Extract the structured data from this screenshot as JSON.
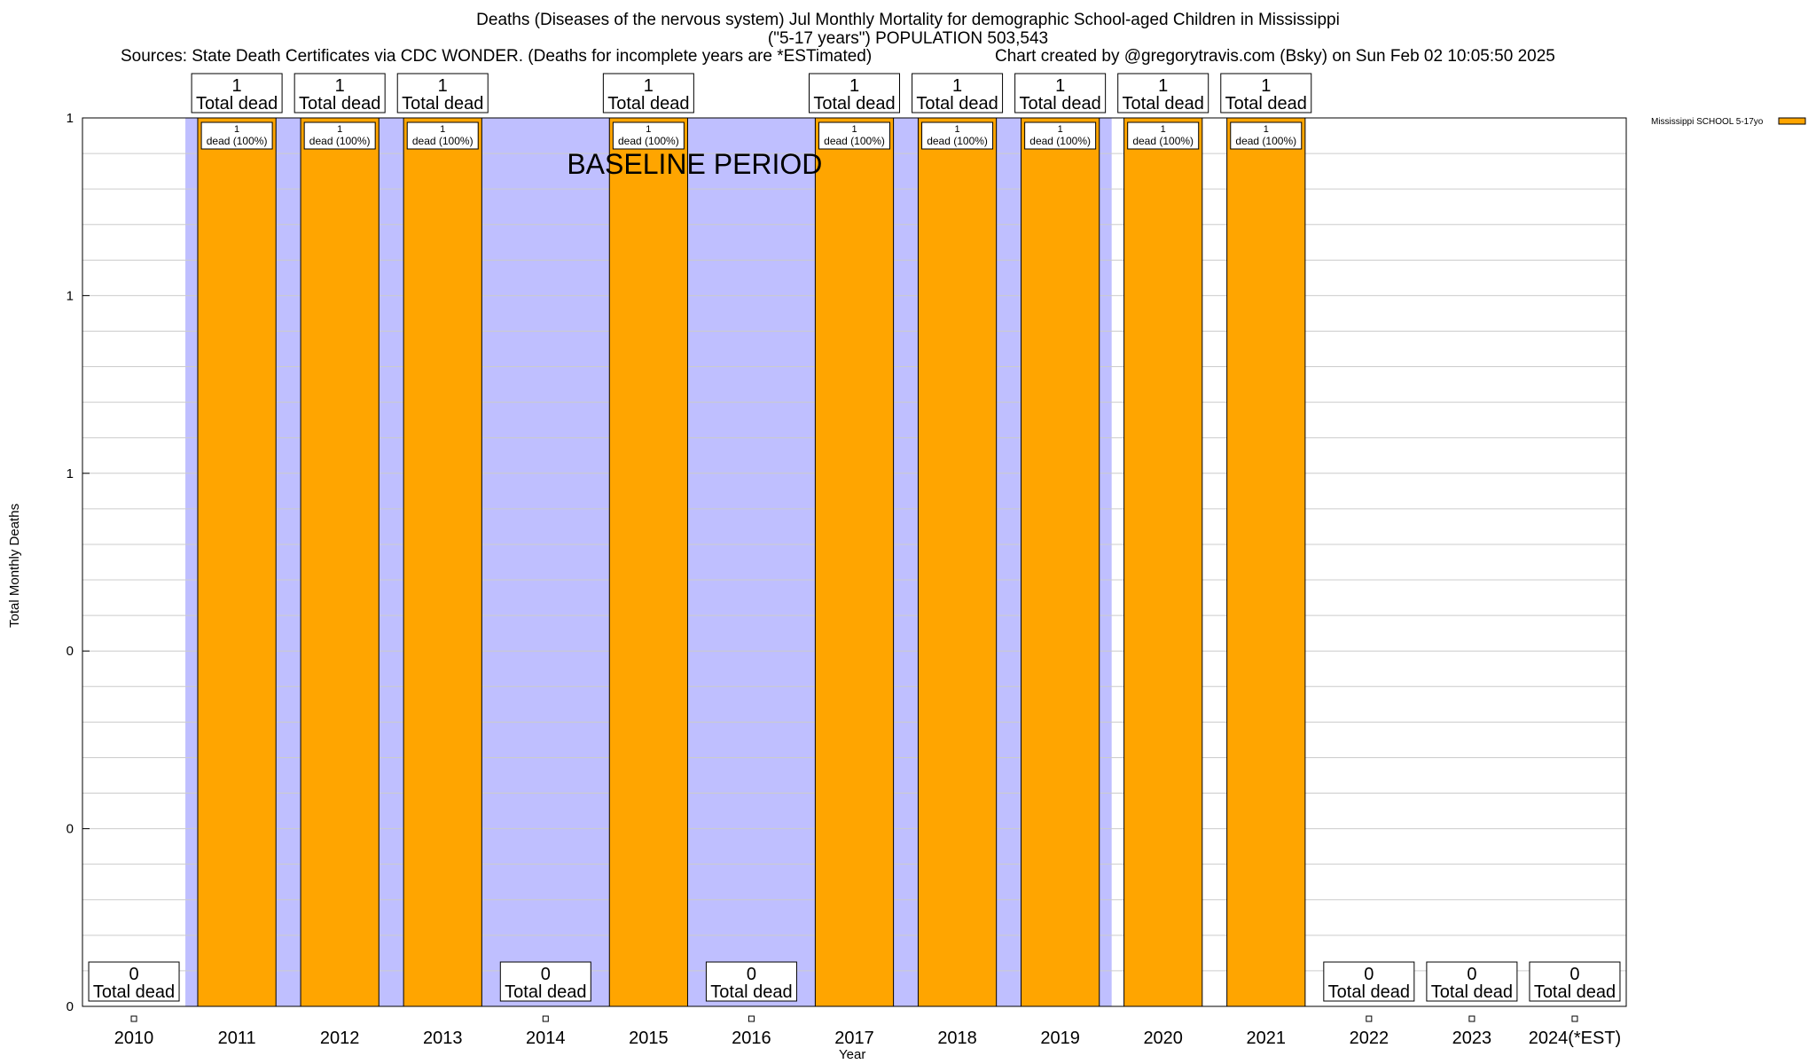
{
  "header": {
    "title_line1": "Deaths (Diseases of the nervous system) Jul Monthly Mortality for demographic School-aged Children in Mississippi",
    "title_line2": "(\"5-17 years\") POPULATION 503,543",
    "source": "Sources: State Death Certificates via CDC WONDER. (Deaths for incomplete years are *ESTimated)",
    "credit": "Chart created by @gregorytravis.com (Bsky) on Sun Feb 02 10:05:50 2025"
  },
  "chart_data": {
    "type": "bar",
    "xlabel": "Year",
    "ylabel": "Total Monthly Deaths",
    "ylim": [
      0,
      1
    ],
    "y_tick_labels": [
      "0",
      "0",
      "0",
      "1",
      "1",
      "1"
    ],
    "grid": true,
    "legend_position": "top-right",
    "categories": [
      "2010",
      "2011",
      "2012",
      "2013",
      "2014",
      "2015",
      "2016",
      "2017",
      "2018",
      "2019",
      "2020",
      "2021",
      "2022",
      "2023",
      "2024(*EST)"
    ],
    "series": [
      {
        "name": "Mississippi SCHOOL 5-17yo",
        "color": "#FFA500",
        "values": [
          0,
          1,
          1,
          1,
          0,
          1,
          0,
          1,
          1,
          1,
          1,
          1,
          0,
          0,
          0
        ]
      }
    ],
    "total_labels": [
      {
        "count": "0",
        "text": "Total dead"
      },
      {
        "count": "1",
        "text": "Total dead"
      },
      {
        "count": "1",
        "text": "Total dead"
      },
      {
        "count": "1",
        "text": "Total dead"
      },
      {
        "count": "0",
        "text": "Total dead"
      },
      {
        "count": "1",
        "text": "Total dead"
      },
      {
        "count": "0",
        "text": "Total dead"
      },
      {
        "count": "1",
        "text": "Total dead"
      },
      {
        "count": "1",
        "text": "Total dead"
      },
      {
        "count": "1",
        "text": "Total dead"
      },
      {
        "count": "1",
        "text": "Total dead"
      },
      {
        "count": "1",
        "text": "Total dead"
      },
      {
        "count": "0",
        "text": "Total dead"
      },
      {
        "count": "0",
        "text": "Total dead"
      },
      {
        "count": "0",
        "text": "Total dead"
      }
    ],
    "bar_labels": [
      {
        "count": "1",
        "text": "dead (100%)"
      }
    ],
    "baseline": {
      "label": "BASELINE PERIOD",
      "start": "2011",
      "end": "2019",
      "color": "#BFBFFF"
    }
  },
  "colors": {
    "bar": "#FFA500",
    "baseline": "#BFBFFF",
    "grid": "#CCCCCC",
    "axis": "#000000"
  }
}
